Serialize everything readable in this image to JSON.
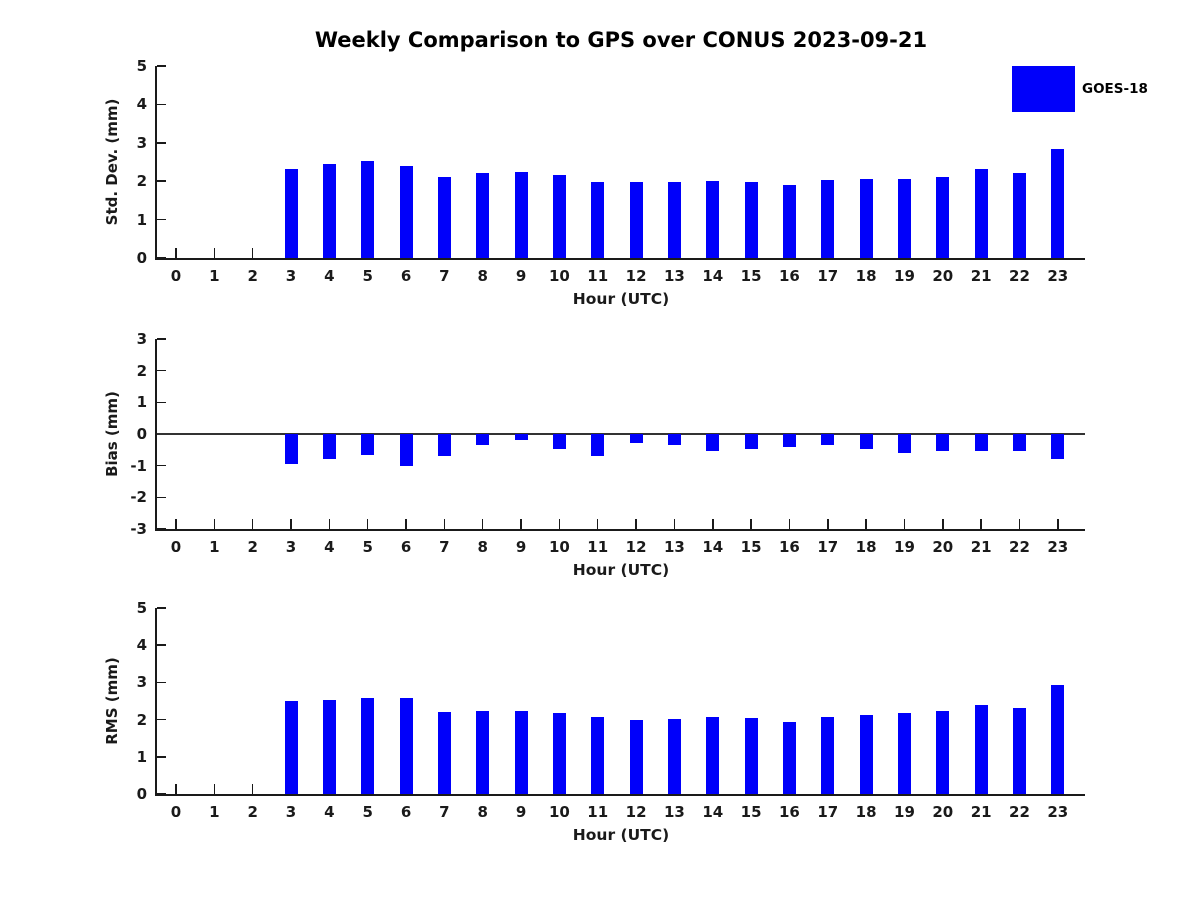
{
  "title": "Weekly Comparison to GPS over CONUS 2023-09-21",
  "legend": {
    "label": "GOES-18",
    "color": "#0000fa",
    "position": "top-right"
  },
  "chart_data": [
    {
      "type": "bar",
      "panel": "std-dev",
      "ylabel": "Std. Dev. (mm)",
      "xlabel": "Hour (UTC)",
      "categories": [
        0,
        1,
        2,
        3,
        4,
        5,
        6,
        7,
        8,
        9,
        10,
        11,
        12,
        13,
        14,
        15,
        16,
        17,
        18,
        19,
        20,
        21,
        22,
        23
      ],
      "series": [
        {
          "name": "GOES-18",
          "color": "#0000fa",
          "values": [
            null,
            null,
            null,
            2.32,
            2.45,
            2.52,
            2.4,
            2.1,
            2.21,
            2.24,
            2.16,
            1.97,
            1.97,
            1.97,
            2.0,
            1.97,
            1.9,
            2.02,
            2.06,
            2.06,
            2.12,
            2.33,
            2.21,
            2.85
          ]
        }
      ],
      "ylim": [
        0,
        5
      ],
      "yticks": [
        0,
        1,
        2,
        3,
        4,
        5
      ],
      "grid": false,
      "zero_line": false,
      "legend_position": "none"
    },
    {
      "type": "bar",
      "panel": "bias",
      "ylabel": "Bias (mm)",
      "xlabel": "Hour (UTC)",
      "categories": [
        0,
        1,
        2,
        3,
        4,
        5,
        6,
        7,
        8,
        9,
        10,
        11,
        12,
        13,
        14,
        15,
        16,
        17,
        18,
        19,
        20,
        21,
        22,
        23
      ],
      "series": [
        {
          "name": "GOES-18",
          "color": "#0000fa",
          "values": [
            null,
            null,
            null,
            -0.95,
            -0.8,
            -0.65,
            -1.0,
            -0.7,
            -0.35,
            -0.2,
            -0.48,
            -0.7,
            -0.28,
            -0.35,
            -0.55,
            -0.46,
            -0.4,
            -0.35,
            -0.48,
            -0.6,
            -0.53,
            -0.55,
            -0.55,
            -0.8
          ]
        }
      ],
      "ylim": [
        -3,
        3
      ],
      "yticks": [
        -3,
        -2,
        -1,
        0,
        1,
        2,
        3
      ],
      "grid": false,
      "zero_line": true,
      "legend_position": "none"
    },
    {
      "type": "bar",
      "panel": "rms",
      "ylabel": "RMS (mm)",
      "xlabel": "Hour (UTC)",
      "categories": [
        0,
        1,
        2,
        3,
        4,
        5,
        6,
        7,
        8,
        9,
        10,
        11,
        12,
        13,
        14,
        15,
        16,
        17,
        18,
        19,
        20,
        21,
        22,
        23
      ],
      "series": [
        {
          "name": "GOES-18",
          "color": "#0000fa",
          "values": [
            null,
            null,
            null,
            2.5,
            2.54,
            2.57,
            2.57,
            2.21,
            2.24,
            2.24,
            2.18,
            2.08,
            1.99,
            2.01,
            2.08,
            2.04,
            1.94,
            2.07,
            2.12,
            2.17,
            2.22,
            2.4,
            2.31,
            2.94
          ]
        }
      ],
      "ylim": [
        0,
        5
      ],
      "yticks": [
        0,
        1,
        2,
        3,
        4,
        5
      ],
      "grid": false,
      "zero_line": false,
      "legend_position": "none"
    }
  ]
}
